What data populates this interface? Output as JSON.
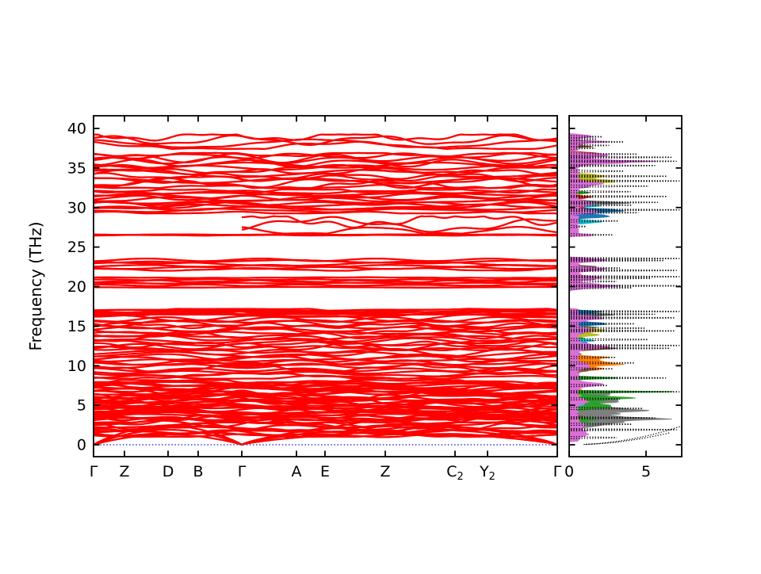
{
  "figure": {
    "background": "#ffffff",
    "kind": "phonon band structure with projected density of states"
  },
  "chart_data": {
    "type": "line",
    "title": "",
    "band_panel": {
      "ylabel": "Frequency (THz)",
      "ylim": [
        -1.5,
        41.6
      ],
      "yticks": [
        0,
        5,
        10,
        15,
        20,
        25,
        30,
        35,
        40
      ],
      "band_color": "#ff0000",
      "zero_line": {
        "value": 0,
        "color": "#3b3bdd",
        "style": "dotted"
      },
      "xticks": [
        {
          "label": "Γ",
          "sub": "",
          "pos": 0.0
        },
        {
          "label": "Z",
          "sub": "",
          "pos": 0.0667
        },
        {
          "label": "D",
          "sub": "",
          "pos": 0.1607
        },
        {
          "label": "B",
          "sub": "",
          "pos": 0.2256
        },
        {
          "label": "Γ",
          "sub": "",
          "pos": 0.3197
        },
        {
          "label": "A",
          "sub": "",
          "pos": 0.4376
        },
        {
          "label": "E",
          "sub": "",
          "pos": 0.4991
        },
        {
          "label": "Z",
          "sub": "",
          "pos": 0.6291
        },
        {
          "label": "C",
          "sub": "2",
          "pos": 0.7795
        },
        {
          "label": "Y",
          "sub": "2",
          "pos": 0.8496
        },
        {
          "label": "Γ",
          "sub": "",
          "pos": 1.0
        }
      ],
      "gamma_nodes": [
        0.0,
        0.3197,
        1.0
      ],
      "acoustic_branches": [
        {
          "seg1_max": 2.4,
          "seg2_max": 2.6
        },
        {
          "seg1_max": 1.9,
          "seg2_max": 2.1
        },
        {
          "seg1_max": 1.3,
          "seg2_max": 1.5
        }
      ],
      "band_clusters": [
        {
          "fmin": 1.0,
          "fmax": 8.2,
          "lines": 36,
          "amp": 0.45,
          "xstart": 0.0
        },
        {
          "fmin": 2.8,
          "fmax": 7.8,
          "lines": 14,
          "amp": 0.3,
          "xstart": 0.0
        },
        {
          "fmin": 8.35,
          "fmax": 17.2,
          "lines": 36,
          "amp": 0.35,
          "xstart": 0.0
        },
        {
          "fmin": 16.4,
          "fmax": 17.15,
          "lines": 3,
          "amp": 0.08,
          "xstart": 0.0
        },
        {
          "fmin": 19.8,
          "fmax": 21.25,
          "lines": 6,
          "amp": 0.1,
          "xstart": 0.0
        },
        {
          "fmin": 22.0,
          "fmax": 23.55,
          "lines": 6,
          "amp": 0.28,
          "xstart": 0.0
        },
        {
          "fmin": 26.45,
          "fmax": 26.62,
          "lines": 2,
          "amp": 0.04,
          "xstart": 0.0
        },
        {
          "fmin": 26.7,
          "fmax": 28.9,
          "lines": 3,
          "amp": 0.75,
          "xstart": 0.3197
        },
        {
          "fmin": 29.25,
          "fmax": 32.3,
          "lines": 13,
          "amp": 0.3,
          "xstart": 0.0
        },
        {
          "fmin": 32.45,
          "fmax": 36.9,
          "lines": 16,
          "amp": 0.5,
          "xstart": 0.0
        },
        {
          "fmin": 37.4,
          "fmax": 39.25,
          "lines": 4,
          "amp": 0.65,
          "xstart": 0.0
        }
      ]
    },
    "dos_panel": {
      "xticks": [
        0,
        5
      ],
      "xlim": [
        0,
        7.3
      ],
      "dotted_color": "#000000",
      "colored_series": [
        {
          "color": "#7f7f7f",
          "base": 0,
          "peaks": [
            [
              2.6,
              2.4,
              0.5
            ],
            [
              3.3,
              5.2,
              0.4
            ],
            [
              4.3,
              4.5,
              0.5
            ],
            [
              5.6,
              3.1,
              0.5
            ],
            [
              6.5,
              2.3,
              0.35
            ],
            [
              11.5,
              0.8,
              0.3
            ],
            [
              14.8,
              1.7,
              0.35
            ],
            [
              16.4,
              2.6,
              0.3
            ],
            [
              21.0,
              1.0,
              0.25
            ],
            [
              30.6,
              3.4,
              0.3
            ]
          ]
        },
        {
          "color": "#2ca02c",
          "base": 0,
          "peaks": [
            [
              2.0,
              0.8,
              0.3
            ],
            [
              3.1,
              1.6,
              0.4
            ],
            [
              4.9,
              2.9,
              0.5
            ],
            [
              5.9,
              3.7,
              0.4
            ],
            [
              6.7,
              6.9,
              0.12
            ],
            [
              8.45,
              3.1,
              0.18
            ],
            [
              13.5,
              0.9,
              0.25
            ],
            [
              31.9,
              1.2,
              0.25
            ]
          ]
        },
        {
          "color": "#ff7f0e",
          "base": 0,
          "peaks": [
            [
              2.3,
              0.9,
              0.3
            ],
            [
              7.0,
              0.8,
              0.2
            ],
            [
              9.6,
              2.1,
              0.3
            ],
            [
              10.3,
              3.4,
              0.35
            ],
            [
              11.0,
              2.5,
              0.3
            ],
            [
              21.6,
              0.7,
              0.2
            ]
          ]
        },
        {
          "color": "#1f77b4",
          "base": 0,
          "peaks": [
            [
              4.0,
              0.6,
              0.3
            ],
            [
              12.9,
              1.1,
              0.25
            ],
            [
              14.4,
              1.7,
              0.3
            ],
            [
              15.3,
              2.4,
              0.3
            ],
            [
              16.8,
              1.9,
              0.25
            ],
            [
              22.7,
              0.6,
              0.2
            ],
            [
              28.9,
              2.5,
              0.3
            ],
            [
              29.6,
              3.7,
              0.3
            ]
          ]
        },
        {
          "color": "#17becf",
          "base": 0,
          "peaks": [
            [
              5.0,
              0.8,
              0.3
            ],
            [
              13.2,
              1.6,
              0.25
            ],
            [
              16.2,
              1.3,
              0.25
            ],
            [
              22.6,
              0.5,
              0.2
            ],
            [
              28.2,
              2.2,
              0.25
            ],
            [
              30.2,
              1.9,
              0.25
            ]
          ]
        },
        {
          "color": "#bcbd22",
          "base": 0,
          "peaks": [
            [
              6.2,
              0.7,
              0.3
            ],
            [
              13.9,
              1.7,
              0.3
            ],
            [
              14.5,
              2.1,
              0.3
            ],
            [
              21.5,
              0.7,
              0.2
            ],
            [
              31.5,
              0.9,
              0.25
            ],
            [
              33.3,
              2.7,
              0.35
            ],
            [
              34.0,
              2.1,
              0.3
            ]
          ]
        },
        {
          "color": "#8c564b",
          "base": 0,
          "peaks": [
            [
              3.6,
              0.8,
              0.3
            ],
            [
              9.5,
              1.7,
              0.3
            ],
            [
              12.2,
              3.1,
              0.3
            ],
            [
              21.0,
              1.7,
              0.3
            ],
            [
              22.5,
              1.5,
              0.25
            ],
            [
              26.55,
              0.7,
              0.12
            ],
            [
              35.6,
              1.6,
              0.3
            ],
            [
              37.7,
              1.3,
              0.22
            ]
          ]
        },
        {
          "color": "#d62728",
          "base": 0,
          "peaks": [
            [
              5.4,
              0.6,
              0.3
            ],
            [
              12.7,
              1.0,
              0.2
            ],
            [
              30.0,
              0.9,
              0.2
            ],
            [
              31.3,
              1.4,
              0.25
            ],
            [
              33.0,
              0.8,
              0.2
            ],
            [
              36.8,
              1.9,
              0.25
            ]
          ]
        },
        {
          "color": "#9467bd",
          "base": 0,
          "peaks": [
            [
              8.5,
              0.5,
              0.15
            ],
            [
              14.1,
              0.8,
              0.2
            ],
            [
              19.9,
              1.5,
              0.25
            ],
            [
              20.4,
              1.2,
              0.2
            ],
            [
              22.3,
              1.4,
              0.25
            ],
            [
              32.6,
              1.1,
              0.25
            ],
            [
              36.2,
              0.8,
              0.2
            ]
          ]
        },
        {
          "color": "#da70d6",
          "base": 0.55,
          "regions": [
            [
              0.4,
              8.2
            ],
            [
              8.35,
              17.2
            ],
            [
              19.7,
              23.7
            ],
            [
              26.35,
              29.0
            ],
            [
              29.1,
              37.0
            ],
            [
              37.2,
              39.35
            ]
          ],
          "peaks": [
            [
              1.4,
              0.7,
              0.5
            ],
            [
              2.5,
              0.5,
              0.4
            ],
            [
              5.5,
              0.6,
              0.4
            ],
            [
              7.6,
              1.5,
              0.3
            ],
            [
              10.0,
              0.8,
              0.4
            ],
            [
              12.4,
              1.7,
              0.35
            ],
            [
              14.5,
              1.0,
              0.3
            ],
            [
              16.0,
              1.4,
              0.3
            ],
            [
              20.1,
              2.4,
              0.3
            ],
            [
              21.1,
              1.6,
              0.25
            ],
            [
              22.2,
              1.7,
              0.25
            ],
            [
              23.35,
              2.1,
              0.22
            ],
            [
              26.5,
              1.1,
              0.12
            ],
            [
              29.5,
              1.4,
              0.25
            ],
            [
              30.5,
              1.0,
              0.3
            ],
            [
              33.0,
              1.4,
              0.35
            ],
            [
              35.8,
              4.4,
              0.3
            ],
            [
              36.6,
              1.9,
              0.25
            ],
            [
              38.3,
              1.5,
              0.2
            ],
            [
              39.0,
              1.1,
              0.18
            ]
          ]
        }
      ],
      "dotted_streaks": [
        [
          0.9,
          3.2
        ],
        [
          1.9,
          7.0
        ],
        [
          2.6,
          4.2
        ],
        [
          3.4,
          5.6
        ],
        [
          4.6,
          4.9
        ],
        [
          5.8,
          3.4
        ],
        [
          6.7,
          7.2
        ],
        [
          7.5,
          2.6
        ],
        [
          8.45,
          6.3
        ],
        [
          9.6,
          2.9
        ],
        [
          10.35,
          4.3
        ],
        [
          11.05,
          3.1
        ],
        [
          12.2,
          6.6
        ],
        [
          12.55,
          7.2
        ],
        [
          13.3,
          5.2
        ],
        [
          14.4,
          6.9
        ],
        [
          14.75,
          5.0
        ],
        [
          15.3,
          4.4
        ],
        [
          16.05,
          6.9
        ],
        [
          16.5,
          5.6
        ],
        [
          16.85,
          7.2
        ],
        [
          19.85,
          4.2
        ],
        [
          20.1,
          7.2
        ],
        [
          20.65,
          3.2
        ],
        [
          21.05,
          5.4
        ],
        [
          21.25,
          7.2
        ],
        [
          22.05,
          7.0
        ],
        [
          22.35,
          3.4
        ],
        [
          23.3,
          6.2
        ],
        [
          23.55,
          7.2
        ],
        [
          26.55,
          2.9
        ],
        [
          27.6,
          1.2
        ],
        [
          28.3,
          3.3
        ],
        [
          29.35,
          4.6
        ],
        [
          29.7,
          7.2
        ],
        [
          30.3,
          4.2
        ],
        [
          30.65,
          5.8
        ],
        [
          31.4,
          6.4
        ],
        [
          32.0,
          4.1
        ],
        [
          32.7,
          5.3
        ],
        [
          33.35,
          7.2
        ],
        [
          33.95,
          6.4
        ],
        [
          34.6,
          3.7
        ],
        [
          35.3,
          5.6
        ],
        [
          35.85,
          7.0
        ],
        [
          36.35,
          6.7
        ],
        [
          36.75,
          4.5
        ],
        [
          37.5,
          1.8
        ],
        [
          37.85,
          2.7
        ],
        [
          38.3,
          3.7
        ],
        [
          38.65,
          1.9
        ],
        [
          38.95,
          2.3
        ]
      ],
      "rise_curves": [
        {
          "f_end": 2.3,
          "v_end": 7.2
        },
        {
          "f_end": 1.5,
          "v_end": 6.5
        }
      ]
    }
  }
}
